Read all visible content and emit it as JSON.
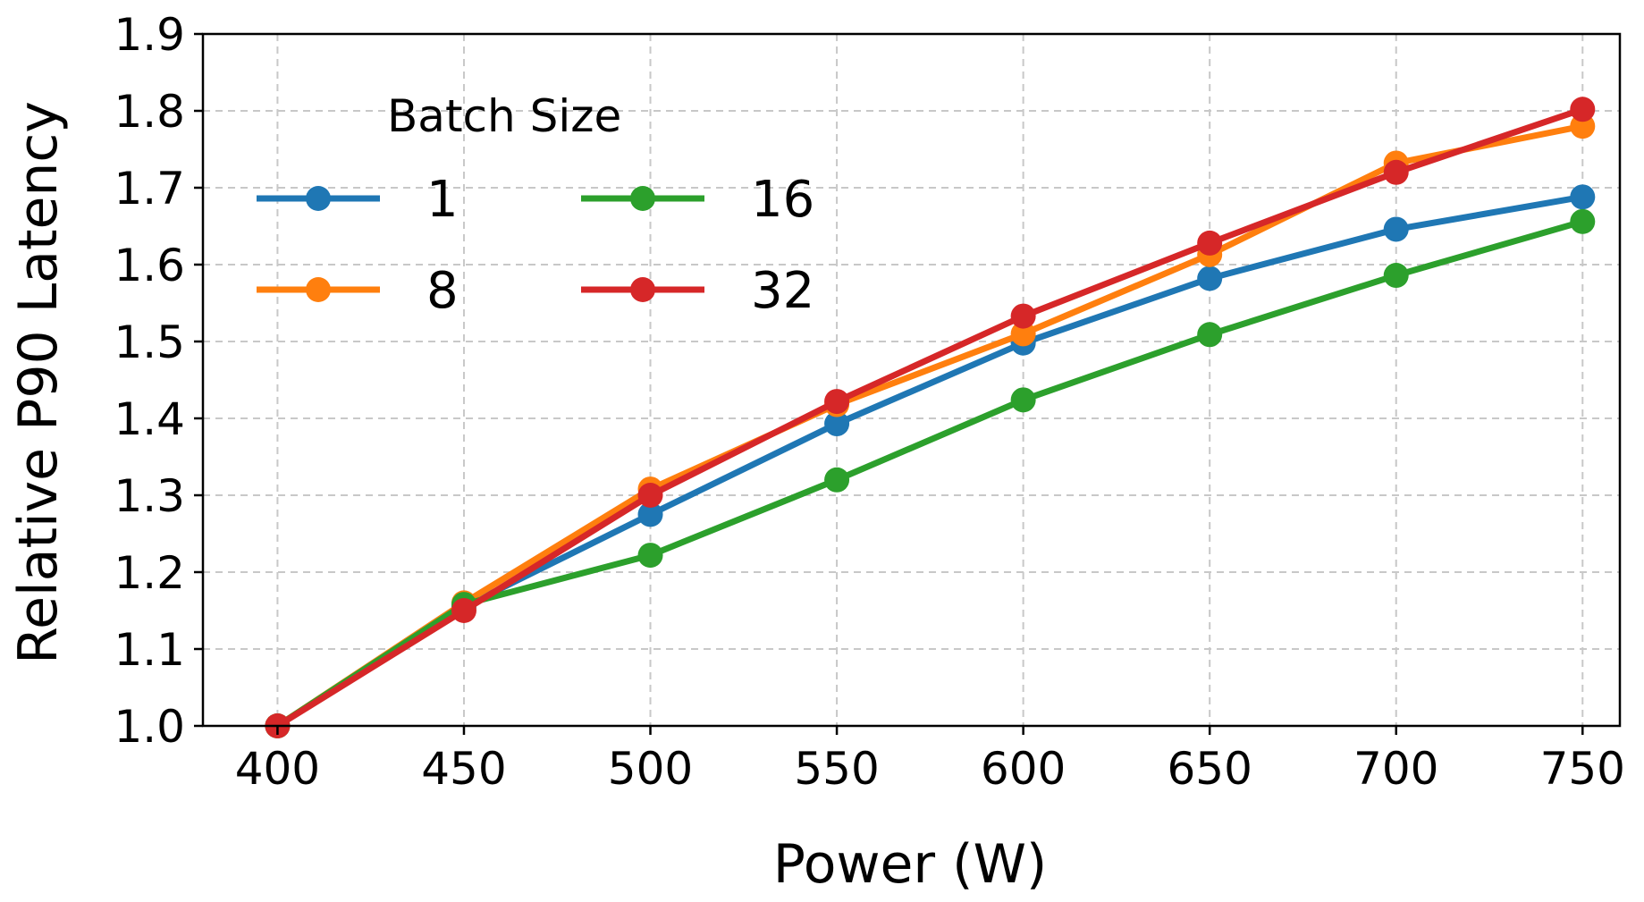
{
  "chart_data": {
    "type": "line",
    "title": "",
    "xlabel": "Power (W)",
    "ylabel": "Relative P90 Latency",
    "x": [
      400,
      450,
      500,
      550,
      600,
      650,
      700,
      750
    ],
    "xlim": [
      380,
      760
    ],
    "ylim": [
      1.0,
      1.9
    ],
    "xticks": [
      "400",
      "450",
      "500",
      "550",
      "600",
      "650",
      "700",
      "750"
    ],
    "yticks": [
      "1.0",
      "1.1",
      "1.2",
      "1.3",
      "1.4",
      "1.5",
      "1.6",
      "1.7",
      "1.8",
      "1.9"
    ],
    "grid": true,
    "legend": {
      "title": "Batch Size",
      "position": "upper-left",
      "columns": 2
    },
    "series": [
      {
        "name": "1",
        "color": "#1f77b4",
        "values": [
          1.0,
          1.155,
          1.275,
          1.393,
          1.498,
          1.582,
          1.646,
          1.688
        ]
      },
      {
        "name": "8",
        "color": "#ff7f0e",
        "values": [
          1.0,
          1.16,
          1.308,
          1.418,
          1.51,
          1.613,
          1.732,
          1.78
        ]
      },
      {
        "name": "16",
        "color": "#2ca02c",
        "values": [
          1.0,
          1.158,
          1.222,
          1.32,
          1.424,
          1.509,
          1.586,
          1.656
        ]
      },
      {
        "name": "32",
        "color": "#d62728",
        "values": [
          1.0,
          1.15,
          1.3,
          1.422,
          1.533,
          1.628,
          1.72,
          1.802
        ]
      }
    ]
  }
}
